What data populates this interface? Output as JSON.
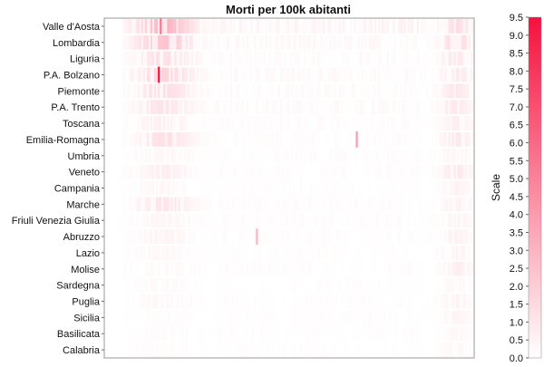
{
  "chart_data": {
    "type": "heatmap",
    "title": "Morti per 100k abitanti",
    "xlabel": "",
    "ylabel": "",
    "rows": [
      "Valle d'Aosta",
      "Lombardia",
      "Liguria",
      "P.A. Bolzano",
      "Piemonte",
      "P.A. Trento",
      "Toscana",
      "Emilia-Romagna",
      "Umbria",
      "Veneto",
      "Campania",
      "Marche",
      "Friuli Venezia Giulia",
      "Abruzzo",
      "Lazio",
      "Molise",
      "Sardegna",
      "Puglia",
      "Sicilia",
      "Basilicata",
      "Calabria"
    ],
    "colorbar": {
      "label": "Scale",
      "ticks": [
        "0.0",
        "0.5",
        "1.0",
        "1.5",
        "2.0",
        "2.5",
        "3.0",
        "3.5",
        "4.0",
        "4.5",
        "5.0",
        "5.5",
        "6.0",
        "6.5",
        "7.0",
        "7.5",
        "8.0",
        "8.5",
        "9.0",
        "9.5"
      ],
      "range": [
        0,
        9.5
      ],
      "color_low": "#ffffff",
      "color_high": "#f5113e"
    },
    "grid": false,
    "legend": "right",
    "row_profiles": [
      {
        "peak": 2.8,
        "second": 1.2,
        "noise": 0.9
      },
      {
        "peak": 2.2,
        "second": 1.4,
        "noise": 0.6
      },
      {
        "peak": 1.2,
        "second": 0.9,
        "noise": 0.4
      },
      {
        "peak": 1.6,
        "second": 0.8,
        "noise": 0.5
      },
      {
        "peak": 1.3,
        "second": 0.9,
        "noise": 0.4
      },
      {
        "peak": 1.0,
        "second": 0.8,
        "noise": 0.5
      },
      {
        "peak": 0.6,
        "second": 0.6,
        "noise": 0.3
      },
      {
        "peak": 1.2,
        "second": 0.9,
        "noise": 0.3
      },
      {
        "peak": 0.3,
        "second": 0.4,
        "noise": 0.3
      },
      {
        "peak": 0.6,
        "second": 0.9,
        "noise": 0.3
      },
      {
        "peak": 0.3,
        "second": 0.5,
        "noise": 0.2
      },
      {
        "peak": 1.0,
        "second": 0.5,
        "noise": 0.3
      },
      {
        "peak": 0.3,
        "second": 0.5,
        "noise": 0.3
      },
      {
        "peak": 0.4,
        "second": 0.5,
        "noise": 0.3
      },
      {
        "peak": 0.3,
        "second": 0.5,
        "noise": 0.2
      },
      {
        "peak": 0.2,
        "second": 0.6,
        "noise": 0.3
      },
      {
        "peak": 0.2,
        "second": 0.3,
        "noise": 0.2
      },
      {
        "peak": 0.3,
        "second": 0.5,
        "noise": 0.2
      },
      {
        "peak": 0.1,
        "second": 0.4,
        "noise": 0.2
      },
      {
        "peak": 0.1,
        "second": 0.3,
        "noise": 0.2
      },
      {
        "peak": 0.1,
        "second": 0.3,
        "noise": 0.2
      }
    ],
    "highlights": [
      {
        "row": "P.A. Bolzano",
        "value": 9.5
      },
      {
        "row": "Emilia-Romagna",
        "value": 4.0
      },
      {
        "row": "Abruzzo",
        "value": 3.0
      },
      {
        "row": "Valle d'Aosta",
        "value": 5.5
      }
    ]
  }
}
